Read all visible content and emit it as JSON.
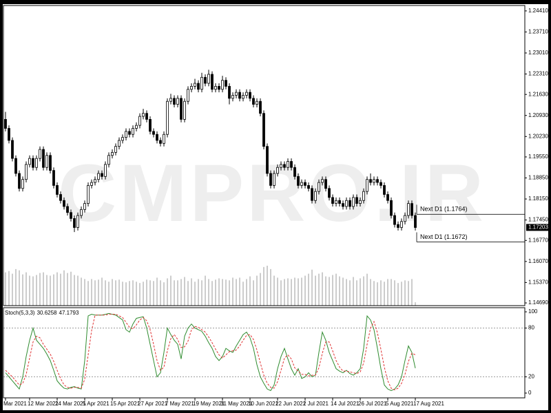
{
  "chart_data": [
    {
      "type": "candlestick",
      "watermark": "CMPRO.IR",
      "bull_color": "#ffffff",
      "bear_color": "#000000",
      "volume_color": "#9a9a9a",
      "xlim": [
        -0.6,
        150.8
      ],
      "ylim": [
        1.146,
        1.2459
      ],
      "yticks": [
        {
          "value": 1.2441,
          "label": "1.24410"
        },
        {
          "value": 1.2371,
          "label": "1.23710"
        },
        {
          "value": 1.2301,
          "label": "1.23010"
        },
        {
          "value": 1.2231,
          "label": "1.22310"
        },
        {
          "value": 1.2163,
          "label": "1.21630"
        },
        {
          "value": 1.2093,
          "label": "1.20930"
        },
        {
          "value": 1.2023,
          "label": "1.20230"
        },
        {
          "value": 1.1955,
          "label": "1.19550"
        },
        {
          "value": 1.1885,
          "label": "1.18850"
        },
        {
          "value": 1.1815,
          "label": "1.18150"
        },
        {
          "value": 1.1745,
          "label": "1.17450"
        },
        {
          "value": 1.1677,
          "label": "1.16770"
        },
        {
          "value": 1.1607,
          "label": "1.16070"
        },
        {
          "value": 1.1537,
          "label": "1.15370"
        },
        {
          "value": 1.1469,
          "label": "1.14690"
        }
      ],
      "current_price": 1.17203,
      "levels": [
        {
          "label": "Next D1 (1.1764)",
          "value": 1.1764
        },
        {
          "label": "Next D1 (1.1672)",
          "value": 1.1672
        }
      ],
      "candles": [
        [
          1.208,
          1.2105,
          1.204,
          1.205
        ],
        [
          1.205,
          1.206,
          1.2,
          1.201
        ],
        [
          1.201,
          1.202,
          1.194,
          1.195
        ],
        [
          1.195,
          1.196,
          1.189,
          1.19
        ],
        [
          1.19,
          1.191,
          1.184,
          1.185
        ],
        [
          1.185,
          1.189,
          1.184,
          1.188
        ],
        [
          1.188,
          1.194,
          1.187,
          1.193
        ],
        [
          1.193,
          1.196,
          1.192,
          1.195
        ],
        [
          1.195,
          1.196,
          1.191,
          1.192
        ],
        [
          1.192,
          1.196,
          1.191,
          1.195
        ],
        [
          1.195,
          1.199,
          1.194,
          1.198
        ],
        [
          1.198,
          1.199,
          1.191,
          1.192
        ],
        [
          1.192,
          1.197,
          1.191,
          1.196
        ],
        [
          1.196,
          1.197,
          1.19,
          1.191
        ],
        [
          1.191,
          1.192,
          1.185,
          1.186
        ],
        [
          1.186,
          1.187,
          1.182,
          1.183
        ],
        [
          1.183,
          1.184,
          1.18,
          1.181
        ],
        [
          1.181,
          1.182,
          1.178,
          1.179
        ],
        [
          1.179,
          1.18,
          1.176,
          1.177
        ],
        [
          1.177,
          1.178,
          1.174,
          1.175
        ],
        [
          1.175,
          1.176,
          1.1705,
          1.172
        ],
        [
          1.172,
          1.177,
          1.171,
          1.176
        ],
        [
          1.176,
          1.179,
          1.175,
          1.178
        ],
        [
          1.178,
          1.181,
          1.177,
          1.18
        ],
        [
          1.18,
          1.187,
          1.179,
          1.186
        ],
        [
          1.186,
          1.188,
          1.185,
          1.187
        ],
        [
          1.187,
          1.189,
          1.186,
          1.188
        ],
        [
          1.188,
          1.191,
          1.187,
          1.19
        ],
        [
          1.19,
          1.191,
          1.188,
          1.189
        ],
        [
          1.189,
          1.194,
          1.188,
          1.193
        ],
        [
          1.193,
          1.197,
          1.192,
          1.196
        ],
        [
          1.196,
          1.198,
          1.195,
          1.197
        ],
        [
          1.197,
          1.2,
          1.196,
          1.199
        ],
        [
          1.199,
          1.202,
          1.198,
          1.201
        ],
        [
          1.201,
          1.203,
          1.2,
          1.202
        ],
        [
          1.202,
          1.205,
          1.201,
          1.204
        ],
        [
          1.204,
          1.205,
          1.202,
          1.203
        ],
        [
          1.203,
          1.206,
          1.202,
          1.205
        ],
        [
          1.205,
          1.207,
          1.204,
          1.206
        ],
        [
          1.206,
          1.21,
          1.205,
          1.209
        ],
        [
          1.209,
          1.2115,
          1.208,
          1.21
        ],
        [
          1.21,
          1.211,
          1.207,
          1.208
        ],
        [
          1.208,
          1.209,
          1.203,
          1.204
        ],
        [
          1.204,
          1.205,
          1.202,
          1.203
        ],
        [
          1.203,
          1.204,
          1.2,
          1.201
        ],
        [
          1.201,
          1.202,
          1.199,
          1.2
        ],
        [
          1.2,
          1.204,
          1.199,
          1.203
        ],
        [
          1.203,
          1.215,
          1.202,
          1.214
        ],
        [
          1.214,
          1.2165,
          1.213,
          1.215
        ],
        [
          1.215,
          1.216,
          1.212,
          1.213
        ],
        [
          1.213,
          1.216,
          1.212,
          1.215
        ],
        [
          1.215,
          1.216,
          1.207,
          1.208
        ],
        [
          1.208,
          1.215,
          1.207,
          1.214
        ],
        [
          1.214,
          1.219,
          1.213,
          1.218
        ],
        [
          1.218,
          1.22,
          1.217,
          1.219
        ],
        [
          1.219,
          1.2215,
          1.218,
          1.22
        ],
        [
          1.22,
          1.221,
          1.217,
          1.218
        ],
        [
          1.218,
          1.2235,
          1.217,
          1.222
        ],
        [
          1.222,
          1.223,
          1.219,
          1.22
        ],
        [
          1.22,
          1.2245,
          1.219,
          1.223
        ],
        [
          1.223,
          1.224,
          1.217,
          1.218
        ],
        [
          1.218,
          1.22,
          1.217,
          1.219
        ],
        [
          1.219,
          1.22,
          1.217,
          1.218
        ],
        [
          1.218,
          1.2225,
          1.217,
          1.221
        ],
        [
          1.221,
          1.222,
          1.218,
          1.219
        ],
        [
          1.219,
          1.22,
          1.213,
          1.215
        ],
        [
          1.215,
          1.217,
          1.214,
          1.216
        ],
        [
          1.216,
          1.218,
          1.215,
          1.217
        ],
        [
          1.217,
          1.218,
          1.214,
          1.215
        ],
        [
          1.215,
          1.217,
          1.214,
          1.216
        ],
        [
          1.216,
          1.218,
          1.215,
          1.217
        ],
        [
          1.217,
          1.218,
          1.214,
          1.215
        ],
        [
          1.215,
          1.216,
          1.212,
          1.213
        ],
        [
          1.213,
          1.215,
          1.212,
          1.214
        ],
        [
          1.214,
          1.215,
          1.209,
          1.21
        ],
        [
          1.21,
          1.211,
          1.198,
          1.199
        ],
        [
          1.199,
          1.2,
          1.189,
          1.19
        ],
        [
          1.19,
          1.191,
          1.185,
          1.186
        ],
        [
          1.186,
          1.191,
          1.185,
          1.19
        ],
        [
          1.19,
          1.193,
          1.189,
          1.192
        ],
        [
          1.192,
          1.194,
          1.191,
          1.193
        ],
        [
          1.193,
          1.194,
          1.191,
          1.192
        ],
        [
          1.192,
          1.195,
          1.191,
          1.194
        ],
        [
          1.194,
          1.195,
          1.191,
          1.192
        ],
        [
          1.192,
          1.193,
          1.188,
          1.189
        ],
        [
          1.189,
          1.19,
          1.185,
          1.186
        ],
        [
          1.186,
          1.188,
          1.185,
          1.187
        ],
        [
          1.187,
          1.188,
          1.185,
          1.186
        ],
        [
          1.186,
          1.187,
          1.184,
          1.185
        ],
        [
          1.185,
          1.186,
          1.18,
          1.181
        ],
        [
          1.181,
          1.185,
          1.18,
          1.184
        ],
        [
          1.184,
          1.188,
          1.183,
          1.187
        ],
        [
          1.187,
          1.189,
          1.186,
          1.188
        ],
        [
          1.188,
          1.189,
          1.184,
          1.185
        ],
        [
          1.185,
          1.186,
          1.181,
          1.182
        ],
        [
          1.182,
          1.183,
          1.179,
          1.18
        ],
        [
          1.18,
          1.182,
          1.179,
          1.181
        ],
        [
          1.181,
          1.182,
          1.179,
          1.18
        ],
        [
          1.18,
          1.181,
          1.178,
          1.179
        ],
        [
          1.179,
          1.182,
          1.178,
          1.181
        ],
        [
          1.181,
          1.182,
          1.178,
          1.179
        ],
        [
          1.179,
          1.183,
          1.178,
          1.182
        ],
        [
          1.182,
          1.183,
          1.179,
          1.18
        ],
        [
          1.18,
          1.182,
          1.179,
          1.181
        ],
        [
          1.181,
          1.185,
          1.18,
          1.184
        ],
        [
          1.184,
          1.189,
          1.183,
          1.188
        ],
        [
          1.188,
          1.19,
          1.186,
          1.187
        ],
        [
          1.187,
          1.189,
          1.186,
          1.188
        ],
        [
          1.188,
          1.189,
          1.186,
          1.187
        ],
        [
          1.187,
          1.188,
          1.185,
          1.186
        ],
        [
          1.186,
          1.187,
          1.182,
          1.183
        ],
        [
          1.183,
          1.184,
          1.18,
          1.181
        ],
        [
          1.181,
          1.182,
          1.175,
          1.176
        ],
        [
          1.176,
          1.177,
          1.172,
          1.173
        ],
        [
          1.173,
          1.174,
          1.171,
          1.172
        ],
        [
          1.172,
          1.175,
          1.171,
          1.174
        ],
        [
          1.174,
          1.177,
          1.173,
          1.176
        ],
        [
          1.176,
          1.181,
          1.175,
          1.18
        ],
        [
          1.18,
          1.181,
          1.175,
          1.176
        ],
        [
          1.176,
          1.177,
          1.171,
          1.172
        ]
      ],
      "volume": [
        50,
        52,
        48,
        55,
        53,
        47,
        50,
        45,
        44,
        46,
        49,
        50,
        46,
        45,
        47,
        50,
        48,
        53,
        49,
        51,
        46,
        45,
        42,
        40,
        37,
        40,
        38,
        39,
        42,
        38,
        36,
        40,
        38,
        39,
        36,
        35,
        37,
        38,
        36,
        34,
        36,
        39,
        38,
        37,
        42,
        38,
        35,
        41,
        45,
        38,
        38,
        40,
        43,
        37,
        41,
        36,
        40,
        38,
        45,
        40,
        37,
        39,
        41,
        40,
        39,
        38,
        42,
        40,
        42,
        36,
        40,
        44,
        38,
        45,
        49,
        58,
        60,
        55,
        45,
        42,
        38,
        40,
        41,
        40,
        42,
        41,
        42,
        45,
        48,
        54,
        45,
        48,
        50,
        44,
        43,
        46,
        48,
        44,
        42,
        40,
        38,
        43,
        38,
        41,
        44,
        48,
        40,
        37,
        35,
        38,
        36,
        40,
        40,
        38,
        34,
        36,
        38,
        37,
        40,
        5
      ]
    },
    {
      "type": "line",
      "indicator": "Stoch(5,3,3)",
      "xlim": [
        -0.6,
        150.8
      ],
      "ylim": [
        -5.9,
        105.1
      ],
      "yticks": [
        100,
        80,
        20,
        0
      ],
      "levels": [
        80,
        20
      ],
      "xticks": [
        {
          "value": 0,
          "label": "Mar 2021"
        },
        {
          "value": 7,
          "label": "12 Mar 2021"
        },
        {
          "value": 15,
          "label": "24 Mar 2021"
        },
        {
          "value": 23,
          "label": "5 Apr 2021"
        },
        {
          "value": 31,
          "label": "15 Apr 2021"
        },
        {
          "value": 39,
          "label": "27 Apr 2021"
        },
        {
          "value": 47,
          "label": "7 May 2021"
        },
        {
          "value": 55,
          "label": "19 May 2021"
        },
        {
          "value": 63,
          "label": "31 May 2021"
        },
        {
          "value": 71,
          "label": "10 Jun 2021"
        },
        {
          "value": 79,
          "label": "22 Jun 2021"
        },
        {
          "value": 87,
          "label": "2 Jul 2021"
        },
        {
          "value": 95,
          "label": "14 Jul 2021"
        },
        {
          "value": 103,
          "label": "26 Jul 2021"
        },
        {
          "value": 111,
          "label": "5 Aug 2021"
        },
        {
          "value": 119,
          "label": "17 Aug 2021"
        }
      ],
      "series": [
        {
          "color": "#2e8b2e",
          "dashed": false,
          "values": [
            25,
            20,
            15,
            10,
            5,
            20,
            45,
            65,
            80,
            65,
            60,
            55,
            48,
            40,
            28,
            15,
            10,
            6,
            5,
            7,
            8,
            6,
            5,
            40,
            95,
            97,
            96,
            96,
            96,
            97,
            98,
            97,
            96,
            93,
            90,
            78,
            75,
            85,
            92,
            93,
            94,
            80,
            60,
            40,
            20,
            25,
            50,
            80,
            72,
            65,
            60,
            42,
            70,
            80,
            85,
            80,
            78,
            76,
            70,
            62,
            55,
            45,
            40,
            45,
            55,
            52,
            50,
            58,
            65,
            72,
            75,
            68,
            55,
            35,
            20,
            12,
            5,
            3,
            10,
            30,
            45,
            55,
            42,
            30,
            22,
            30,
            18,
            20,
            25,
            20,
            22,
            50,
            75,
            65,
            50,
            40,
            30,
            27,
            25,
            28,
            24,
            22,
            25,
            30,
            55,
            95,
            90,
            78,
            55,
            30,
            10,
            5,
            3,
            5,
            10,
            20,
            40,
            58,
            50,
            30.6258
          ]
        },
        {
          "color": "#e03030",
          "dashed": true,
          "values": [
            28,
            24,
            20,
            15,
            10,
            12,
            23,
            43,
            63,
            70,
            68,
            60,
            54,
            48,
            39,
            28,
            18,
            10,
            7,
            6,
            7,
            7,
            6,
            17,
            47,
            77,
            96,
            96,
            96,
            96,
            97,
            97,
            97,
            95,
            93,
            87,
            81,
            79,
            84,
            90,
            93,
            89,
            78,
            60,
            40,
            28,
            32,
            52,
            67,
            72,
            66,
            56,
            57,
            64,
            78,
            82,
            81,
            78,
            75,
            69,
            62,
            54,
            47,
            43,
            47,
            51,
            52,
            53,
            58,
            65,
            71,
            72,
            66,
            53,
            37,
            22,
            12,
            7,
            6,
            14,
            28,
            43,
            47,
            42,
            31,
            27,
            23,
            23,
            21,
            22,
            22,
            31,
            49,
            63,
            63,
            52,
            40,
            32,
            27,
            27,
            26,
            25,
            24,
            26,
            37,
            60,
            80,
            88,
            74,
            54,
            32,
            15,
            6,
            4,
            6,
            12,
            23,
            39,
            49,
            47.1793
          ]
        }
      ]
    }
  ]
}
